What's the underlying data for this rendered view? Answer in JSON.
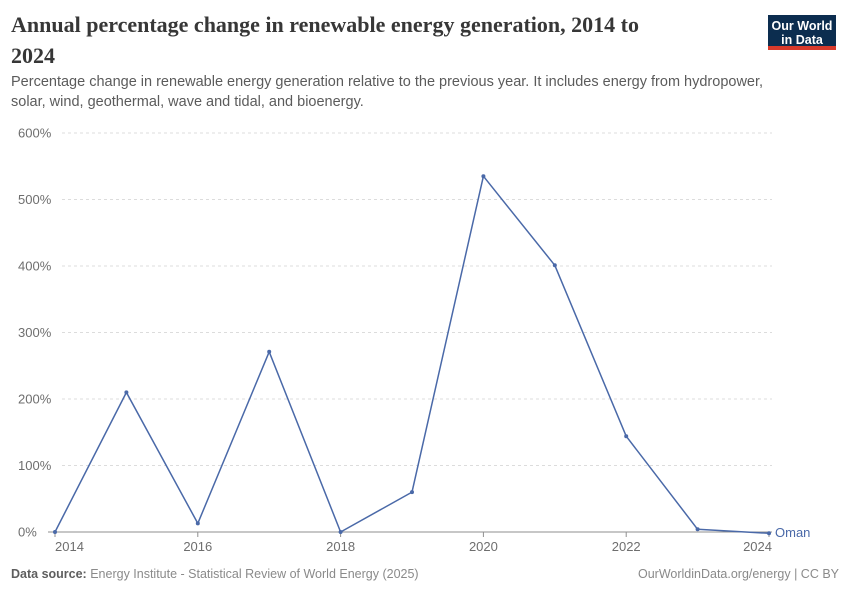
{
  "header": {
    "title": "Annual percentage change in renewable energy generation, 2014 to 2024",
    "title_lines": [
      "Annual percentage change in renewable energy generation, 2014 to",
      "2024"
    ],
    "subtitle": "Percentage change in renewable energy generation relative to the previous year. It includes energy from hydropower, solar, wind, geothermal, wave and tidal, and bioenergy.",
    "subtitle_lines": [
      "Percentage change in renewable energy generation relative to the previous year. It includes energy from hydropower,",
      "solar, wind, geothermal, wave and tidal, and bioenergy."
    ],
    "logo": {
      "lines": [
        "Our World",
        "in Data"
      ],
      "text": "Our World in Data",
      "bg_color": "#0c2d4f",
      "bar_color": "#d93a2b"
    }
  },
  "chart_data": {
    "type": "line",
    "title": "Annual percentage change in renewable energy generation, 2014 to 2024",
    "x": [
      2014,
      2015,
      2016,
      2017,
      2018,
      2019,
      2020,
      2021,
      2022,
      2023,
      2024
    ],
    "series": [
      {
        "name": "Oman",
        "color": "#4a69a8",
        "values": [
          0,
          210,
          13,
          271,
          0,
          60,
          535,
          401,
          144,
          4,
          -2
        ]
      }
    ],
    "xlabel": "",
    "ylabel": "",
    "ylim": [
      0,
      600
    ],
    "xlim": [
      2014,
      2024
    ],
    "grid": "horizontal-dashed",
    "legend_position": "end-of-line-label",
    "y_ticks": [
      {
        "value": 0,
        "label": "0%"
      },
      {
        "value": 100,
        "label": "100%"
      },
      {
        "value": 200,
        "label": "200%"
      },
      {
        "value": 300,
        "label": "300%"
      },
      {
        "value": 400,
        "label": "400%"
      },
      {
        "value": 500,
        "label": "500%"
      },
      {
        "value": 600,
        "label": "600%"
      }
    ],
    "x_ticks": [
      {
        "year": 2014,
        "label": "2014"
      },
      {
        "year": 2016,
        "label": "2016"
      },
      {
        "year": 2018,
        "label": "2018"
      },
      {
        "year": 2020,
        "label": "2020"
      },
      {
        "year": 2022,
        "label": "2022"
      },
      {
        "year": 2024,
        "label": "2024"
      }
    ]
  },
  "footer": {
    "source_label": "Data source:",
    "source_text": " Energy Institute - Statistical Review of World Energy (2025)",
    "attribution": "OurWorldinData.org/energy | CC BY"
  }
}
